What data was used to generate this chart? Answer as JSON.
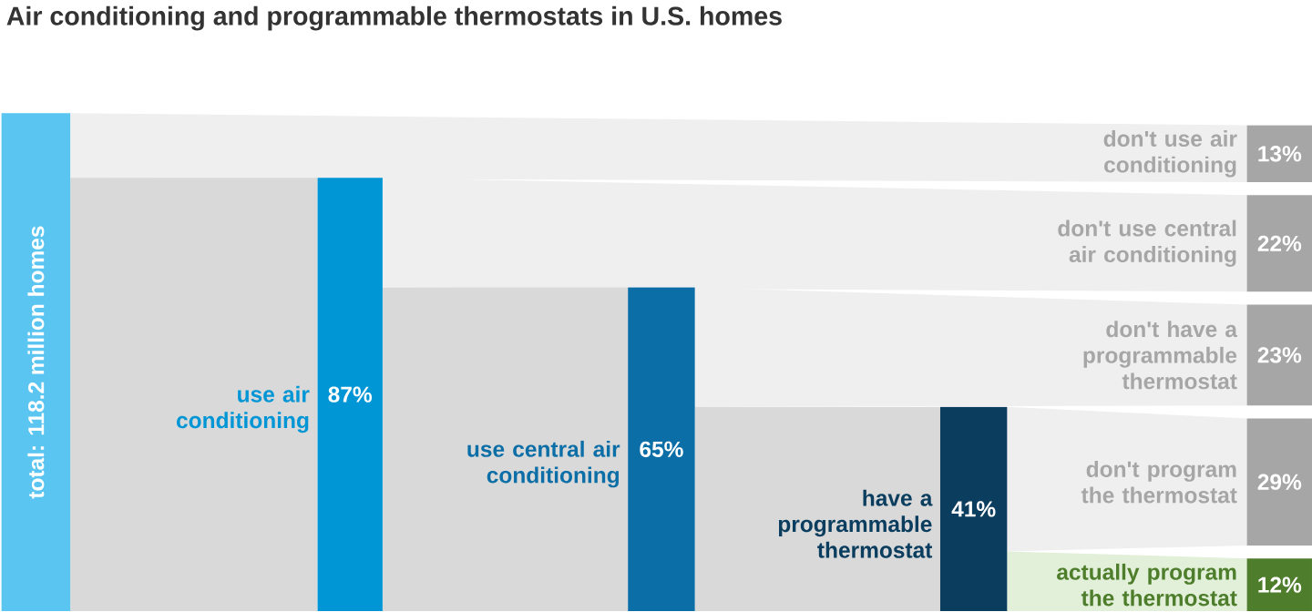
{
  "chart_data": {
    "type": "other",
    "title": "Air conditioning and programmable thermostats in U.S. homes",
    "annotations": [
      "total: 118.2 million homes"
    ],
    "categories": [
      "use air conditioning",
      "use central air conditioning",
      "have a programmable thermostat",
      "don't use air conditioning",
      "don't use central air conditioning",
      "don't have a programmable thermostat",
      "don't program the thermostat",
      "actually program the thermostat"
    ],
    "values": [
      87,
      65,
      41,
      13,
      22,
      23,
      29,
      12
    ],
    "value_labels": [
      "87%",
      "65%",
      "41%",
      "13%",
      "22%",
      "23%",
      "29%",
      "12%"
    ]
  }
}
